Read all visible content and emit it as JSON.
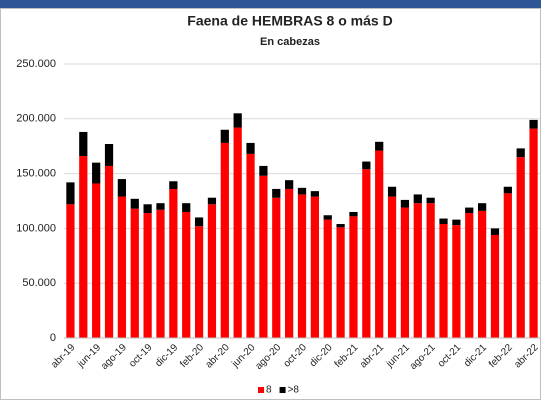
{
  "chart_data": {
    "type": "stacked_bar",
    "title": "Faena de HEMBRAS 8 o más D",
    "subtitle": "En cabezas",
    "categories": [
      "abr-19",
      null,
      "jun-19",
      null,
      "ago-19",
      null,
      "oct-19",
      null,
      "dic-19",
      null,
      "feb-20",
      null,
      "abr-20",
      null,
      "jun-20",
      null,
      "ago-20",
      null,
      "oct-20",
      null,
      "dic-20",
      null,
      "feb-21",
      null,
      "abr-21",
      null,
      "jun-21",
      null,
      "ago-21",
      null,
      "oct-21",
      null,
      "dic-21",
      null,
      "feb-22",
      null,
      "abr-22"
    ],
    "series": [
      {
        "name": "8",
        "color": "#ff0000",
        "values": [
          122000,
          166000,
          141000,
          157000,
          129000,
          118000,
          114000,
          117000,
          136000,
          115000,
          102000,
          122000,
          178000,
          192000,
          168000,
          148000,
          128000,
          136000,
          131000,
          129000,
          108000,
          101000,
          111000,
          154000,
          171000,
          129000,
          119000,
          123000,
          123000,
          104000,
          103000,
          114000,
          116000,
          94000,
          132000,
          165000,
          191000
        ]
      },
      {
        "name": ">8",
        "color": "#000000",
        "values": [
          20000,
          22000,
          19000,
          20000,
          16000,
          9000,
          8000,
          6000,
          7000,
          8000,
          8000,
          6000,
          12000,
          13000,
          10000,
          9000,
          8000,
          8000,
          6000,
          5000,
          4000,
          3000,
          4000,
          7000,
          8000,
          9000,
          7000,
          8000,
          5000,
          5000,
          5000,
          5000,
          7000,
          6000,
          6000,
          8000,
          8000
        ]
      }
    ],
    "ylim": [
      0,
      250000
    ],
    "yticks": [
      0,
      {
        "value": 50000,
        "label": "50.000"
      },
      {
        "value": 100000,
        "label": "100.000"
      },
      {
        "value": 150000,
        "label": "150.000"
      },
      {
        "value": 200000,
        "label": "200.000"
      },
      {
        "value": 250000,
        "label": "250.000"
      }
    ],
    "grid": true,
    "legend": "bottom"
  }
}
